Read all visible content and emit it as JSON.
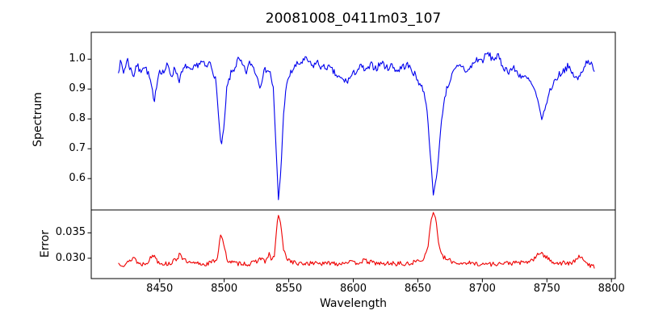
{
  "figure": {
    "title": "20081008_0411m03_107",
    "xlabel": "Wavelength",
    "ylabel_top": "Spectrum",
    "ylabel_bottom": "Error",
    "background": "#ffffff",
    "spine_color": "#000000"
  },
  "chart_data": {
    "type": "line",
    "title": "20081008_0411m03_107",
    "xlabel": "Wavelength",
    "x_range": [
      8397,
      8803
    ],
    "x_ticks": [
      8450,
      8500,
      8550,
      8600,
      8650,
      8700,
      8750,
      8800
    ],
    "x_data_range": [
      8418,
      8787
    ],
    "grid": false,
    "legend": "none",
    "features": {
      "absorption_lines": [
        {
          "center": 8446,
          "min_flux": 0.855
        },
        {
          "center": 8466,
          "min_flux": 0.93
        },
        {
          "center": 8498,
          "min_flux": 0.715
        },
        {
          "center": 8542,
          "min_flux": 0.53
        },
        {
          "center": 8595,
          "min_flux": 0.925
        },
        {
          "center": 8662,
          "min_flux": 0.545
        },
        {
          "center": 8746,
          "min_flux": 0.8
        }
      ],
      "error_spikes": [
        {
          "center": 8446,
          "peak": 0.0307
        },
        {
          "center": 8466,
          "peak": 0.0312
        },
        {
          "center": 8497,
          "peak": 0.0348
        },
        {
          "center": 8542,
          "peak": 0.0385
        },
        {
          "center": 8662,
          "peak": 0.039
        },
        {
          "center": 8746,
          "peak": 0.0313
        },
        {
          "center": 8775,
          "peak": 0.0307
        }
      ]
    },
    "panels": [
      {
        "name": "spectrum",
        "ylabel": "Spectrum",
        "color": "#0000ee",
        "y_range": [
          0.495,
          1.09
        ],
        "y_ticks": [
          1.0,
          0.9,
          0.8,
          0.7,
          0.6
        ],
        "y_tick_labels": [
          "1.0",
          "0.9",
          "0.8",
          "0.7",
          "0.6"
        ],
        "continuum_level": 0.98,
        "noise_amplitude": 0.012,
        "noise_seed": 7,
        "points": [
          [
            8418,
            0.965
          ],
          [
            8420,
            0.99
          ],
          [
            8422,
            0.955
          ],
          [
            8425,
            1.0
          ],
          [
            8427,
            0.97
          ],
          [
            8430,
            0.945
          ],
          [
            8432,
            0.985
          ],
          [
            8435,
            0.955
          ],
          [
            8437,
            0.98
          ],
          [
            8440,
            0.965
          ],
          [
            8443,
            0.925
          ],
          [
            8445,
            0.87
          ],
          [
            8446,
            0.855
          ],
          [
            8448,
            0.93
          ],
          [
            8450,
            0.965
          ],
          [
            8453,
            0.955
          ],
          [
            8456,
            0.98
          ],
          [
            8459,
            0.945
          ],
          [
            8462,
            0.97
          ],
          [
            8465,
            0.93
          ],
          [
            8468,
            0.96
          ],
          [
            8471,
            0.98
          ],
          [
            8474,
            0.955
          ],
          [
            8477,
            0.97
          ],
          [
            8480,
            0.985
          ],
          [
            8483,
            0.99
          ],
          [
            8486,
            0.97
          ],
          [
            8489,
            0.99
          ],
          [
            8491,
            0.965
          ],
          [
            8493,
            0.94
          ],
          [
            8495,
            0.85
          ],
          [
            8497,
            0.73
          ],
          [
            8498,
            0.715
          ],
          [
            8500,
            0.78
          ],
          [
            8502,
            0.9
          ],
          [
            8505,
            0.95
          ],
          [
            8508,
            0.97
          ],
          [
            8511,
            1.0
          ],
          [
            8514,
            0.98
          ],
          [
            8517,
            0.955
          ],
          [
            8520,
            0.99
          ],
          [
            8523,
            0.97
          ],
          [
            8526,
            0.935
          ],
          [
            8528,
            0.91
          ],
          [
            8530,
            0.95
          ],
          [
            8533,
            0.97
          ],
          [
            8536,
            0.95
          ],
          [
            8538,
            0.9
          ],
          [
            8540,
            0.72
          ],
          [
            8542,
            0.53
          ],
          [
            8544,
            0.63
          ],
          [
            8546,
            0.82
          ],
          [
            8548,
            0.9
          ],
          [
            8550,
            0.94
          ],
          [
            8553,
            0.965
          ],
          [
            8556,
            0.98
          ],
          [
            8560,
            0.99
          ],
          [
            8564,
            1.0
          ],
          [
            8568,
            0.975
          ],
          [
            8572,
            0.99
          ],
          [
            8576,
            0.97
          ],
          [
            8580,
            0.975
          ],
          [
            8584,
            0.96
          ],
          [
            8588,
            0.94
          ],
          [
            8592,
            0.93
          ],
          [
            8595,
            0.925
          ],
          [
            8598,
            0.94
          ],
          [
            8602,
            0.96
          ],
          [
            8606,
            0.975
          ],
          [
            8610,
            0.96
          ],
          [
            8614,
            0.98
          ],
          [
            8618,
            0.97
          ],
          [
            8622,
            0.99
          ],
          [
            8626,
            0.97
          ],
          [
            8630,
            0.98
          ],
          [
            8634,
            0.96
          ],
          [
            8638,
            0.975
          ],
          [
            8642,
            0.98
          ],
          [
            8646,
            0.96
          ],
          [
            8650,
            0.93
          ],
          [
            8654,
            0.9
          ],
          [
            8657,
            0.84
          ],
          [
            8659,
            0.72
          ],
          [
            8662,
            0.545
          ],
          [
            8665,
            0.62
          ],
          [
            8668,
            0.78
          ],
          [
            8671,
            0.88
          ],
          [
            8674,
            0.92
          ],
          [
            8677,
            0.95
          ],
          [
            8680,
            0.97
          ],
          [
            8684,
            0.98
          ],
          [
            8688,
            0.955
          ],
          [
            8692,
            0.98
          ],
          [
            8696,
            1.0
          ],
          [
            8700,
            0.995
          ],
          [
            8704,
            1.02
          ],
          [
            8708,
            1.0
          ],
          [
            8712,
            1.01
          ],
          [
            8716,
            0.975
          ],
          [
            8720,
            0.96
          ],
          [
            8724,
            0.97
          ],
          [
            8728,
            0.95
          ],
          [
            8732,
            0.94
          ],
          [
            8736,
            0.93
          ],
          [
            8740,
            0.9
          ],
          [
            8743,
            0.86
          ],
          [
            8746,
            0.8
          ],
          [
            8749,
            0.84
          ],
          [
            8752,
            0.89
          ],
          [
            8755,
            0.92
          ],
          [
            8758,
            0.94
          ],
          [
            8762,
            0.96
          ],
          [
            8766,
            0.975
          ],
          [
            8770,
            0.95
          ],
          [
            8774,
            0.93
          ],
          [
            8778,
            0.97
          ],
          [
            8782,
            1.0
          ],
          [
            8785,
            0.975
          ],
          [
            8787,
            0.95
          ]
        ]
      },
      {
        "name": "error",
        "ylabel": "Error",
        "color": "#ee0000",
        "y_range": [
          0.026,
          0.0395
        ],
        "y_ticks": [
          0.035,
          0.03
        ],
        "y_tick_labels": [
          "0.035",
          "0.030"
        ],
        "baseline_level": 0.029,
        "noise_amplitude": 0.00045,
        "noise_seed": 13,
        "points": [
          [
            8418,
            0.029
          ],
          [
            8422,
            0.0288
          ],
          [
            8426,
            0.0292
          ],
          [
            8430,
            0.0303
          ],
          [
            8433,
            0.0291
          ],
          [
            8436,
            0.0288
          ],
          [
            8440,
            0.0292
          ],
          [
            8444,
            0.0303
          ],
          [
            8446,
            0.0307
          ],
          [
            8448,
            0.0295
          ],
          [
            8452,
            0.029
          ],
          [
            8456,
            0.0289
          ],
          [
            8460,
            0.0292
          ],
          [
            8464,
            0.0301
          ],
          [
            8466,
            0.0312
          ],
          [
            8468,
            0.0298
          ],
          [
            8472,
            0.0291
          ],
          [
            8476,
            0.0289
          ],
          [
            8480,
            0.029
          ],
          [
            8484,
            0.0288
          ],
          [
            8488,
            0.029
          ],
          [
            8492,
            0.0294
          ],
          [
            8495,
            0.0302
          ],
          [
            8497,
            0.0348
          ],
          [
            8499,
            0.0335
          ],
          [
            8502,
            0.0298
          ],
          [
            8506,
            0.0292
          ],
          [
            8510,
            0.0289
          ],
          [
            8514,
            0.0291
          ],
          [
            8518,
            0.0288
          ],
          [
            8522,
            0.029
          ],
          [
            8526,
            0.0296
          ],
          [
            8529,
            0.0301
          ],
          [
            8532,
            0.0292
          ],
          [
            8535,
            0.0308
          ],
          [
            8537,
            0.0296
          ],
          [
            8539,
            0.0306
          ],
          [
            8541,
            0.037
          ],
          [
            8542,
            0.0385
          ],
          [
            8544,
            0.0365
          ],
          [
            8546,
            0.0315
          ],
          [
            8549,
            0.0299
          ],
          [
            8552,
            0.0294
          ],
          [
            8556,
            0.029
          ],
          [
            8560,
            0.0288
          ],
          [
            8564,
            0.0291
          ],
          [
            8568,
            0.0289
          ],
          [
            8572,
            0.0293
          ],
          [
            8576,
            0.0288
          ],
          [
            8580,
            0.029
          ],
          [
            8584,
            0.0292
          ],
          [
            8588,
            0.0289
          ],
          [
            8592,
            0.0291
          ],
          [
            8596,
            0.0294
          ],
          [
            8600,
            0.029
          ],
          [
            8604,
            0.0292
          ],
          [
            8608,
            0.0295
          ],
          [
            8612,
            0.0293
          ],
          [
            8616,
            0.0291
          ],
          [
            8620,
            0.029
          ],
          [
            8624,
            0.0288
          ],
          [
            8628,
            0.0291
          ],
          [
            8632,
            0.0289
          ],
          [
            8636,
            0.029
          ],
          [
            8640,
            0.0287
          ],
          [
            8644,
            0.029
          ],
          [
            8648,
            0.0293
          ],
          [
            8652,
            0.0296
          ],
          [
            8655,
            0.0301
          ],
          [
            8658,
            0.0325
          ],
          [
            8660,
            0.0372
          ],
          [
            8662,
            0.039
          ],
          [
            8664,
            0.0378
          ],
          [
            8666,
            0.0332
          ],
          [
            8668,
            0.0306
          ],
          [
            8672,
            0.0298
          ],
          [
            8676,
            0.0294
          ],
          [
            8680,
            0.0291
          ],
          [
            8684,
            0.029
          ],
          [
            8688,
            0.0292
          ],
          [
            8692,
            0.0289
          ],
          [
            8696,
            0.029
          ],
          [
            8700,
            0.0287
          ],
          [
            8704,
            0.029
          ],
          [
            8708,
            0.0288
          ],
          [
            8712,
            0.029
          ],
          [
            8716,
            0.0289
          ],
          [
            8720,
            0.0291
          ],
          [
            8724,
            0.029
          ],
          [
            8728,
            0.0292
          ],
          [
            8732,
            0.029
          ],
          [
            8736,
            0.0294
          ],
          [
            8740,
            0.0298
          ],
          [
            8744,
            0.0309
          ],
          [
            8746,
            0.0313
          ],
          [
            8748,
            0.0304
          ],
          [
            8752,
            0.0297
          ],
          [
            8756,
            0.0292
          ],
          [
            8760,
            0.029
          ],
          [
            8764,
            0.0291
          ],
          [
            8768,
            0.0289
          ],
          [
            8772,
            0.0294
          ],
          [
            8775,
            0.0307
          ],
          [
            8778,
            0.0295
          ],
          [
            8781,
            0.0289
          ],
          [
            8784,
            0.0286
          ],
          [
            8787,
            0.0283
          ]
        ]
      }
    ]
  }
}
